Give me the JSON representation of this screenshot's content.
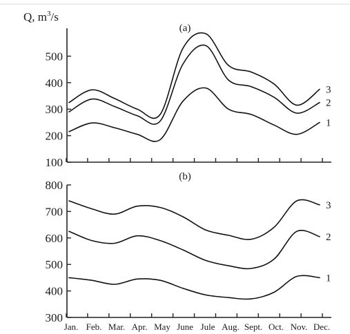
{
  "chart_data": {
    "type": "line",
    "ylabel": "Q, m³/s",
    "y_unit_superscript": "3",
    "categories": [
      "Jan.",
      "Feb.",
      "Mar.",
      "Apr.",
      "May",
      "June",
      "Jule",
      "Aug.",
      "Sept.",
      "Oct.",
      "Nov.",
      "Dec."
    ],
    "panels": [
      {
        "label": "(a)",
        "ylim": [
          100,
          600
        ],
        "yticks": [
          100,
          200,
          300,
          400,
          500
        ],
        "series": [
          {
            "name": "1",
            "values": [
              215,
              248,
              230,
              205,
              185,
              330,
              380,
              300,
              280,
              240,
              205,
              250
            ]
          },
          {
            "name": "2",
            "values": [
              290,
              338,
              310,
              275,
              255,
              470,
              540,
              410,
              385,
              345,
              285,
              325
            ]
          },
          {
            "name": "3",
            "values": [
              325,
              373,
              340,
              300,
              280,
              530,
              585,
              465,
              440,
              395,
              315,
              375
            ]
          }
        ]
      },
      {
        "label": "(b)",
        "ylim": [
          300,
          800
        ],
        "yticks": [
          300,
          400,
          500,
          600,
          700,
          800
        ],
        "series": [
          {
            "name": "1",
            "values": [
              450,
              440,
              425,
              445,
              440,
              410,
              385,
              375,
              370,
              395,
              455,
              450
            ]
          },
          {
            "name": "2",
            "values": [
              625,
              590,
              580,
              608,
              590,
              555,
              515,
              495,
              485,
              520,
              625,
              605
            ]
          },
          {
            "name": "3",
            "values": [
              740,
              710,
              690,
              720,
              715,
              680,
              630,
              610,
              595,
              640,
              740,
              725
            ]
          }
        ]
      }
    ]
  }
}
